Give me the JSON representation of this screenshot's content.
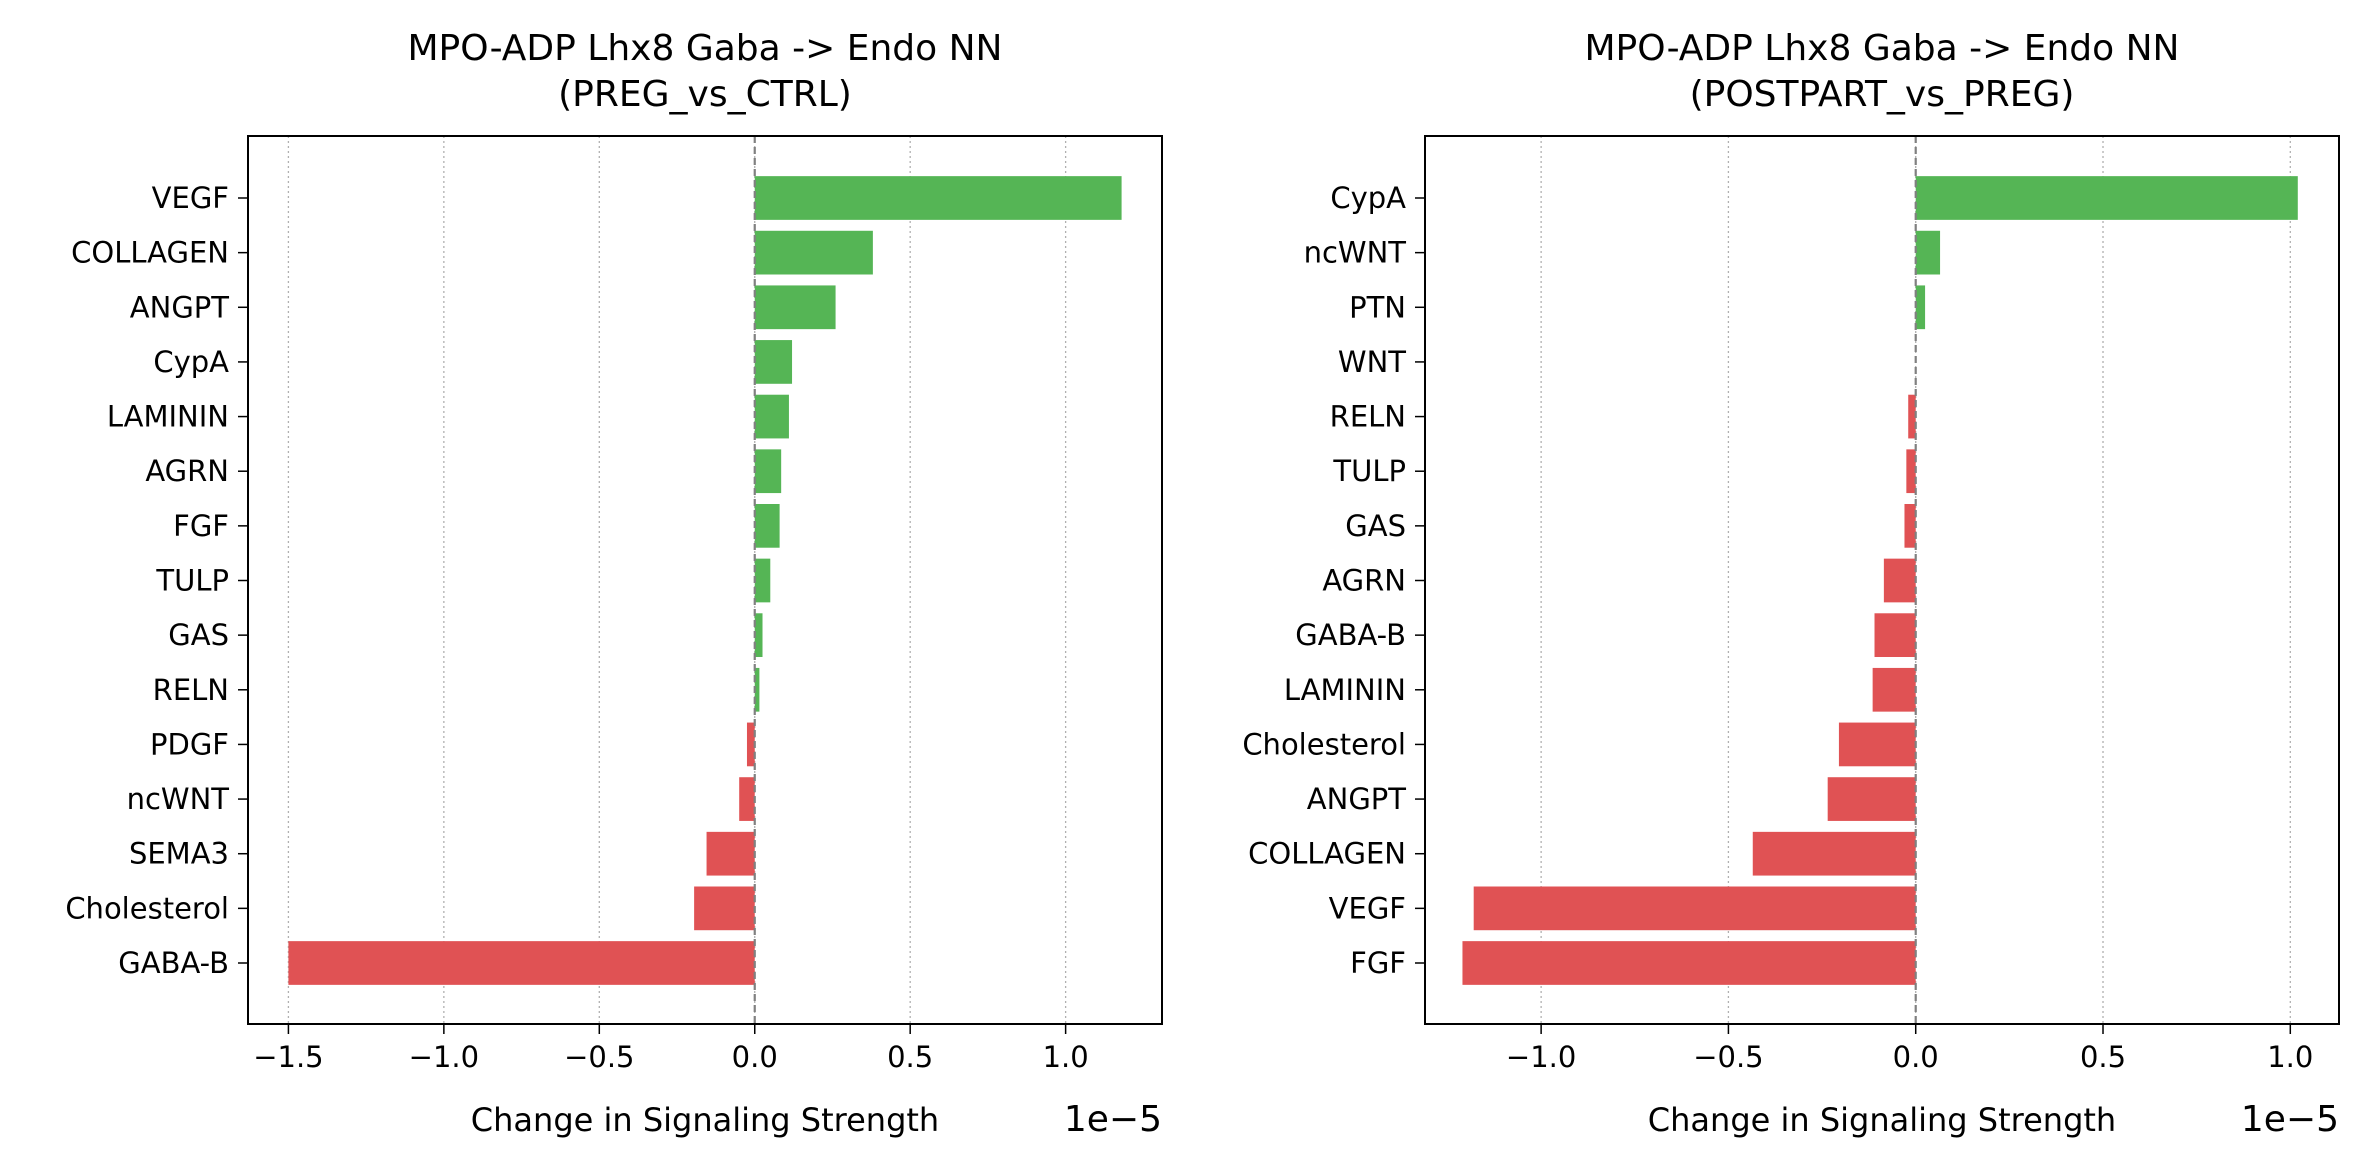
{
  "colors": {
    "positive": "#55b555",
    "negative": "#e05254",
    "grid": "#b0b0b0",
    "zero_line": "#808080"
  },
  "chart_data": [
    {
      "type": "bar",
      "orientation": "horizontal",
      "title": "MPO-ADP Lhx8 Gaba -> Endo NN\n(PREG_vs_CTRL)",
      "title_lines": [
        "MPO-ADP Lhx8 Gaba -> Endo NN",
        "(PREG_vs_CTRL)"
      ],
      "xlabel": "Change in Signaling Strength",
      "offset_label": "1e−5",
      "xlim": [
        -1.63,
        1.31
      ],
      "xticks": [
        -1.5,
        -1.0,
        -0.5,
        0.0,
        0.5,
        1.0
      ],
      "xtick_labels": [
        "−1.5",
        "−1.0",
        "−0.5",
        "0.0",
        "0.5",
        "1.0"
      ],
      "grid": "x, dotted",
      "categories": [
        "VEGF",
        "COLLAGEN",
        "ANGPT",
        "CypA",
        "LAMININ",
        "AGRN",
        "FGF",
        "TULP",
        "GAS",
        "RELN",
        "PDGF",
        "ncWNT",
        "SEMA3",
        "Cholesterol",
        "GABA-B"
      ],
      "values": [
        1.18,
        0.38,
        0.26,
        0.12,
        0.11,
        0.085,
        0.08,
        0.05,
        0.025,
        0.015,
        -0.025,
        -0.05,
        -0.155,
        -0.195,
        -1.5
      ]
    },
    {
      "type": "bar",
      "orientation": "horizontal",
      "title": "MPO-ADP Lhx8 Gaba -> Endo NN\n(POSTPART_vs_PREG)",
      "title_lines": [
        "MPO-ADP Lhx8 Gaba -> Endo NN",
        "(POSTPART_vs_PREG)"
      ],
      "xlabel": "Change in Signaling Strength",
      "offset_label": "1e−5",
      "xlim": [
        -1.31,
        1.13
      ],
      "xticks": [
        -1.0,
        -0.5,
        0.0,
        0.5,
        1.0
      ],
      "xtick_labels": [
        "−1.0",
        "−0.5",
        "0.0",
        "0.5",
        "1.0"
      ],
      "grid": "x, dotted",
      "categories": [
        "CypA",
        "ncWNT",
        "PTN",
        "WNT",
        "RELN",
        "TULP",
        "GAS",
        "AGRN",
        "GABA-B",
        "LAMININ",
        "Cholesterol",
        "ANGPT",
        "COLLAGEN",
        "VEGF",
        "FGF"
      ],
      "values": [
        1.02,
        0.065,
        0.025,
        0.0,
        -0.02,
        -0.025,
        -0.03,
        -0.085,
        -0.11,
        -0.115,
        -0.205,
        -0.235,
        -0.435,
        -1.18,
        -1.21
      ]
    }
  ]
}
